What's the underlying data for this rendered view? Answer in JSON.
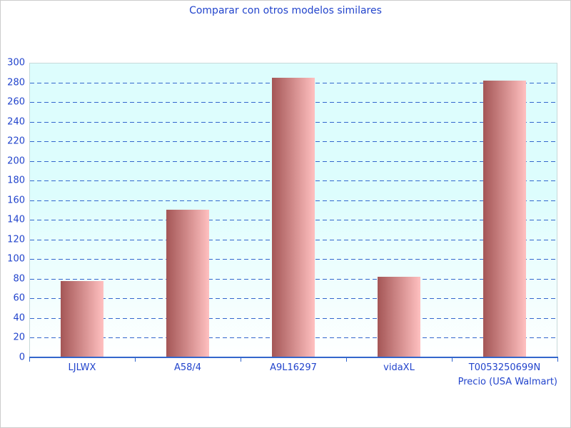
{
  "title": "Comparar con otros modelos similares",
  "chart_data": {
    "type": "bar",
    "title": "Comparar con otros modelos similares",
    "categories": [
      "LJLWX",
      "A58/4",
      "A9L16297",
      "vidaXL",
      "T0053250699N"
    ],
    "values": [
      78,
      150,
      285,
      82,
      282
    ],
    "xlabel": "Precio (USA Walmart)",
    "ylabel": "",
    "ylim": [
      0,
      300
    ],
    "ytick_step": 20,
    "grid": "horizontal-dashed",
    "legend_position": "none",
    "bar_orientation": "vertical"
  },
  "colors": {
    "text_blue": "#2244cc",
    "gridline": "#3366cc",
    "axis_line": "#3366cc",
    "bar_gradient_left": "#a45656",
    "bar_gradient_right": "#ffc0c0",
    "plot_bg_top": "#ddfdfd",
    "plot_bg_bottom": "#ffffff",
    "plot_border": "#c6d9d9",
    "frame_border": "#cccccc",
    "background": "#ffffff"
  }
}
